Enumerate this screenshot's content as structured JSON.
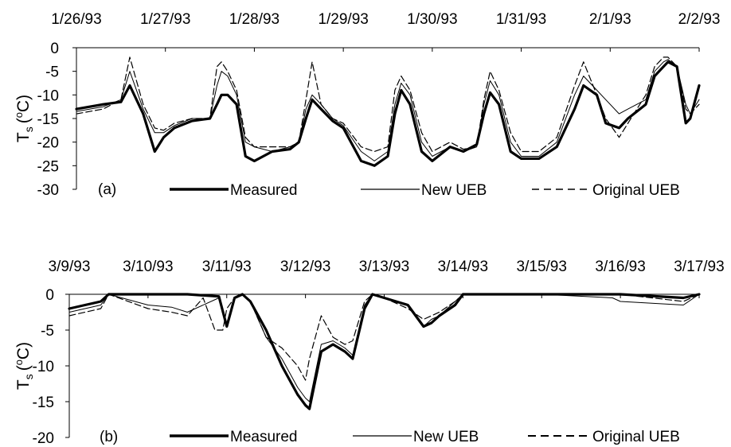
{
  "chart_data": [
    {
      "type": "line",
      "panel_label": "(a)",
      "ylabel": "T",
      "ylabel_subscript": "s",
      "ylabel_unit": "(oC)",
      "ylabel_unit_open": "(",
      "ylabel_unit_sup": "o",
      "ylabel_unit_close": "C)",
      "ylim": [
        -30,
        0
      ],
      "yticks": [
        "0",
        "-5",
        "-10",
        "-15",
        "-20",
        "-25",
        "-30"
      ],
      "ytick_values": [
        0,
        -5,
        -10,
        -15,
        -20,
        -25,
        -30
      ],
      "xlim": [
        0,
        7
      ],
      "x_unit": "days since first tick date",
      "xticks": [
        "1/26/93",
        "1/27/93",
        "1/28/93",
        "1/29/93",
        "1/30/93",
        "1/31/93",
        "2/1/93",
        "2/2/93"
      ],
      "legend": [
        "Measured",
        "New UEB",
        "Original UEB"
      ],
      "legend_placement": "bottom inside plot",
      "grid": false,
      "series": [
        {
          "name": "Measured",
          "x": [
            0,
            0.3,
            0.5,
            0.6,
            0.75,
            0.88,
            0.98,
            1.1,
            1.3,
            1.5,
            1.58,
            1.63,
            1.7,
            1.8,
            1.9,
            2.0,
            2.2,
            2.4,
            2.5,
            2.58,
            2.65,
            2.75,
            2.88,
            3.0,
            3.2,
            3.35,
            3.5,
            3.58,
            3.65,
            3.75,
            3.88,
            4.0,
            4.2,
            4.35,
            4.5,
            4.58,
            4.65,
            4.75,
            4.88,
            5.0,
            5.2,
            5.4,
            5.6,
            5.7,
            5.85,
            5.95,
            6.1,
            6.2,
            6.4,
            6.5,
            6.6,
            6.65,
            6.75,
            6.85,
            6.9,
            7.0
          ],
          "y": [
            -13,
            -12,
            -11.5,
            -8,
            -14,
            -22,
            -19,
            -17,
            -15.5,
            -15,
            -12,
            -10,
            -10,
            -12,
            -23,
            -24,
            -22,
            -21.5,
            -20,
            -15,
            -11,
            -13,
            -15.5,
            -17,
            -24,
            -25,
            -23,
            -14,
            -9,
            -12,
            -22,
            -24,
            -21,
            -22,
            -20.5,
            -14,
            -9.5,
            -12,
            -22,
            -23.5,
            -23.5,
            -21,
            -13,
            -8,
            -10,
            -16,
            -17,
            -15,
            -12,
            -6,
            -4,
            -3,
            -4,
            -16,
            -15,
            -8
          ]
        },
        {
          "name": "New UEB",
          "x": [
            0,
            0.3,
            0.5,
            0.6,
            0.75,
            0.88,
            0.98,
            1.1,
            1.3,
            1.5,
            1.58,
            1.63,
            1.7,
            1.8,
            1.9,
            2.0,
            2.2,
            2.4,
            2.5,
            2.58,
            2.65,
            2.75,
            2.88,
            3.0,
            3.2,
            3.35,
            3.5,
            3.58,
            3.65,
            3.75,
            3.88,
            4.0,
            4.2,
            4.35,
            4.5,
            4.58,
            4.65,
            4.75,
            4.88,
            5.0,
            5.2,
            5.4,
            5.6,
            5.7,
            5.85,
            5.95,
            6.1,
            6.2,
            6.4,
            6.5,
            6.6,
            6.65,
            6.75,
            6.85,
            6.9,
            7.0
          ],
          "y": [
            -13.5,
            -12.5,
            -11,
            -5,
            -13,
            -18,
            -18,
            -16.5,
            -15,
            -15,
            -8,
            -5,
            -6,
            -10,
            -20,
            -21,
            -22,
            -21,
            -20,
            -13,
            -10,
            -12,
            -15,
            -16.5,
            -22,
            -24,
            -22,
            -12,
            -7.5,
            -10,
            -20,
            -23,
            -21,
            -22,
            -21,
            -12,
            -7,
            -10,
            -20,
            -23,
            -23,
            -20,
            -10,
            -6,
            -9,
            -11,
            -14,
            -13,
            -11,
            -5,
            -3,
            -2.5,
            -4,
            -12,
            -14,
            -11
          ]
        },
        {
          "name": "Original UEB",
          "x": [
            0,
            0.3,
            0.5,
            0.6,
            0.75,
            0.88,
            0.98,
            1.1,
            1.3,
            1.5,
            1.58,
            1.63,
            1.7,
            1.8,
            1.9,
            2.0,
            2.2,
            2.4,
            2.5,
            2.58,
            2.65,
            2.75,
            2.88,
            3.0,
            3.2,
            3.35,
            3.5,
            3.58,
            3.65,
            3.75,
            3.88,
            4.0,
            4.2,
            4.35,
            4.5,
            4.58,
            4.65,
            4.75,
            4.88,
            5.0,
            5.2,
            5.4,
            5.6,
            5.7,
            5.85,
            5.95,
            6.1,
            6.2,
            6.4,
            6.5,
            6.6,
            6.65,
            6.75,
            6.85,
            6.9,
            7.0
          ],
          "y": [
            -14,
            -13,
            -11,
            -2,
            -12,
            -17,
            -17.5,
            -16,
            -15,
            -15,
            -4,
            -3,
            -5,
            -9,
            -19,
            -21,
            -21,
            -21,
            -20,
            -11,
            -3,
            -12,
            -15,
            -16,
            -21,
            -22,
            -21,
            -9,
            -6,
            -9,
            -18,
            -22,
            -20,
            -21.5,
            -21,
            -11,
            -5,
            -9,
            -18,
            -22,
            -22,
            -19,
            -8,
            -3,
            -10,
            -15,
            -19,
            -16,
            -10,
            -4,
            -2,
            -2,
            -4,
            -13,
            -14,
            -12
          ]
        }
      ]
    },
    {
      "type": "line",
      "panel_label": "(b)",
      "ylabel": "T",
      "ylabel_subscript": "s",
      "ylabel_unit": "(oC)",
      "ylabel_unit_open": "(",
      "ylabel_unit_sup": "o",
      "ylabel_unit_close": "C)",
      "ylim": [
        -20,
        0
      ],
      "yticks": [
        "0",
        "-5",
        "-10",
        "-15",
        "-20"
      ],
      "ytick_values": [
        0,
        -5,
        -10,
        -15,
        -20
      ],
      "xlim": [
        0,
        8
      ],
      "x_unit": "days since first tick date",
      "xticks": [
        "3/9/93",
        "3/10/93",
        "3/11/93",
        "3/12/93",
        "3/13/93",
        "3/14/93",
        "3/15/93",
        "3/16/93",
        "3/17/93"
      ],
      "legend": [
        "Measured",
        "New UEB",
        "Original UEB"
      ],
      "legend_placement": "bottom inside plot",
      "grid": false,
      "series": [
        {
          "name": "Measured",
          "x": [
            0,
            0.2,
            0.4,
            0.5,
            1.0,
            1.5,
            1.9,
            2.0,
            2.1,
            2.2,
            2.3,
            2.5,
            2.7,
            2.9,
            3.0,
            3.05,
            3.2,
            3.35,
            3.5,
            3.6,
            3.75,
            3.85,
            4.0,
            4.3,
            4.5,
            4.6,
            4.7,
            4.9,
            5.0,
            5.5,
            6.0,
            7.0,
            7.8,
            8.0
          ],
          "y": [
            -2,
            -1.5,
            -1,
            0,
            0,
            0,
            -0.3,
            -4.5,
            -0.5,
            0,
            -1,
            -5,
            -10,
            -14,
            -15.5,
            -16,
            -8,
            -7,
            -8,
            -9,
            -2,
            0,
            -0.5,
            -1.5,
            -4.5,
            -4,
            -3,
            -1.5,
            0,
            0,
            0,
            0,
            -0.5,
            0
          ]
        },
        {
          "name": "New UEB",
          "x": [
            0,
            0.2,
            0.4,
            0.5,
            1.0,
            1.3,
            1.5,
            1.9,
            2.0,
            2.1,
            2.2,
            2.3,
            2.5,
            2.7,
            2.9,
            3.0,
            3.05,
            3.2,
            3.35,
            3.5,
            3.6,
            3.75,
            3.85,
            4.0,
            4.3,
            4.5,
            4.6,
            4.7,
            4.9,
            5.0,
            5.5,
            6.0,
            6.9,
            7.0,
            7.8,
            8.0
          ],
          "y": [
            -2.5,
            -2,
            -1.5,
            0,
            -1.5,
            -1.8,
            -2.5,
            -0.5,
            -4,
            -0.5,
            0,
            -1,
            -6,
            -9,
            -13,
            -14.5,
            -15,
            -7,
            -6.5,
            -7.5,
            -8.5,
            -1.5,
            0,
            -0.5,
            -1.5,
            -4.5,
            -3.5,
            -3,
            -1,
            0,
            0,
            0,
            -0.5,
            -1,
            -1.5,
            0
          ]
        },
        {
          "name": "Original UEB",
          "x": [
            0,
            0.2,
            0.4,
            0.5,
            1.0,
            1.3,
            1.5,
            1.7,
            1.85,
            1.95,
            2.0,
            2.1,
            2.2,
            2.3,
            2.5,
            2.7,
            2.9,
            3.0,
            3.05,
            3.2,
            3.35,
            3.5,
            3.6,
            3.75,
            3.85,
            4.0,
            4.3,
            4.5,
            4.6,
            4.7,
            4.9,
            5.0,
            5.5,
            6.0,
            7.0,
            7.8,
            8.0
          ],
          "y": [
            -3,
            -2.5,
            -2,
            0,
            -2,
            -2.5,
            -3,
            -0.5,
            -5,
            -5,
            -2,
            -0.5,
            0,
            -1,
            -6,
            -7.5,
            -10,
            -12,
            -9,
            -3,
            -6,
            -7,
            -6.5,
            -1,
            0,
            -0.5,
            -2,
            -3.5,
            -3,
            -2.5,
            -1,
            0,
            0,
            0,
            0,
            -1,
            0
          ]
        }
      ]
    }
  ]
}
